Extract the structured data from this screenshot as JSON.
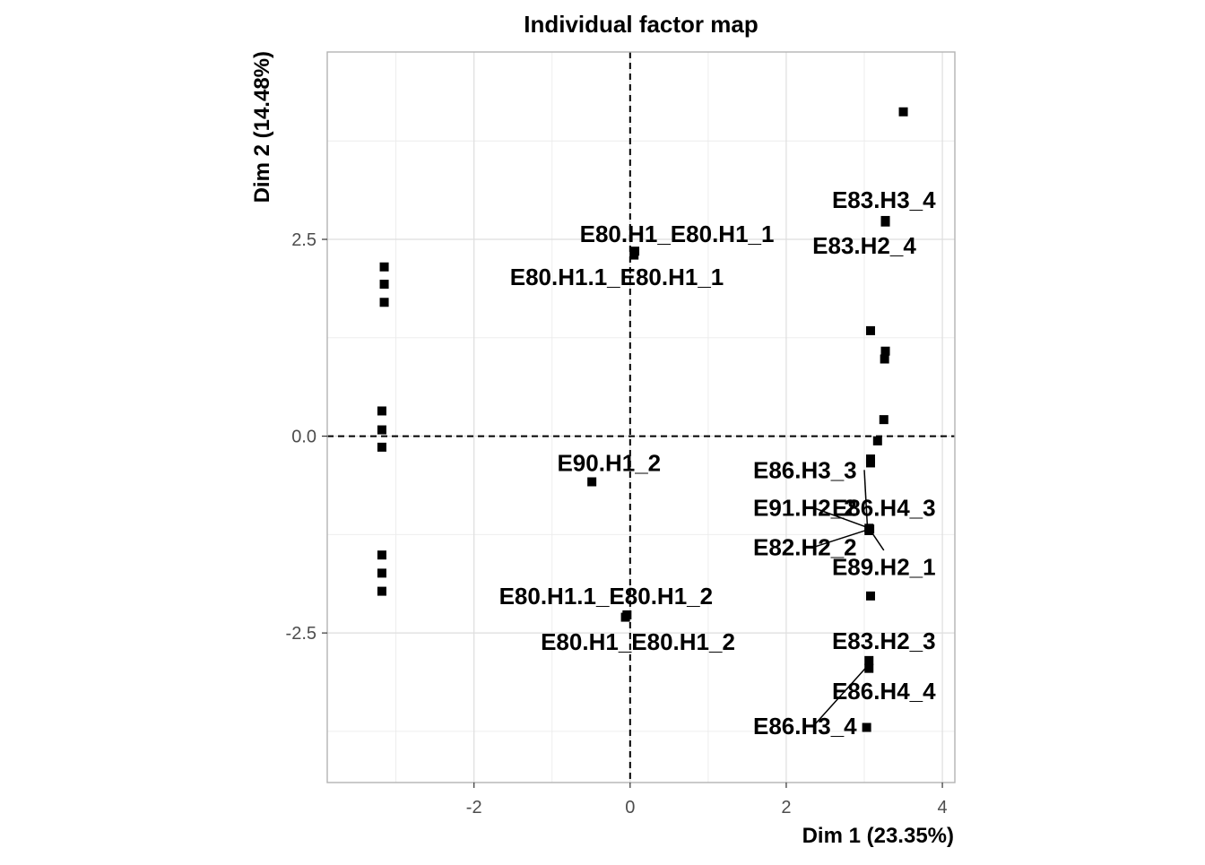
{
  "chart_data": {
    "type": "scatter",
    "title": "Individual factor map",
    "xlabel": "Dim 1 (23.35%)",
    "ylabel": "Dim 2 (14.48%)",
    "xlim": [
      -3.88,
      4.16
    ],
    "ylim": [
      -4.4,
      4.88
    ],
    "x_ticks": [
      -2,
      0,
      2,
      4
    ],
    "x_tick_labels": [
      "-2",
      "0",
      "2",
      "4"
    ],
    "y_ticks": [
      -2.5,
      0.0,
      2.5
    ],
    "y_tick_labels": [
      "-2.5",
      "0.0",
      "2.5"
    ],
    "grid": true,
    "reference_lines": {
      "x": 0,
      "y": 0,
      "style": "dashed"
    },
    "points": [
      {
        "x": -3.15,
        "y": 2.15
      },
      {
        "x": -3.15,
        "y": 1.93
      },
      {
        "x": -3.15,
        "y": 1.7
      },
      {
        "x": -3.18,
        "y": 0.32
      },
      {
        "x": -3.18,
        "y": 0.08
      },
      {
        "x": -3.18,
        "y": -0.14
      },
      {
        "x": -3.18,
        "y": -1.51
      },
      {
        "x": -3.18,
        "y": -1.74
      },
      {
        "x": -3.18,
        "y": -1.97
      },
      {
        "x": 0.06,
        "y": 2.35
      },
      {
        "x": 0.05,
        "y": 2.3
      },
      {
        "x": -0.49,
        "y": -0.58
      },
      {
        "x": -0.06,
        "y": -2.3
      },
      {
        "x": -0.04,
        "y": -2.27
      },
      {
        "x": 3.5,
        "y": 4.12
      },
      {
        "x": 3.27,
        "y": 2.74
      },
      {
        "x": 3.27,
        "y": 2.72
      },
      {
        "x": 3.08,
        "y": 1.34
      },
      {
        "x": 3.27,
        "y": 1.08
      },
      {
        "x": 3.26,
        "y": 0.98
      },
      {
        "x": 3.25,
        "y": 0.21
      },
      {
        "x": 3.17,
        "y": -0.06
      },
      {
        "x": 3.08,
        "y": -0.29
      },
      {
        "x": 3.08,
        "y": -0.34
      },
      {
        "x": 3.06,
        "y": -1.17
      },
      {
        "x": 3.06,
        "y": -1.2
      },
      {
        "x": 3.07,
        "y": -1.18
      },
      {
        "x": 3.08,
        "y": -2.03
      },
      {
        "x": 3.06,
        "y": -2.85
      },
      {
        "x": 3.06,
        "y": -2.95
      },
      {
        "x": 3.03,
        "y": -3.7
      }
    ],
    "labels": [
      {
        "text": "E80.H1_E80.H1_1",
        "x": 0.6,
        "y": 2.57
      },
      {
        "text": "E80.H1.1_E80.H1_1",
        "x": -0.17,
        "y": 2.02
      },
      {
        "text": "E83.H3_4",
        "x": 3.25,
        "y": 3.0
      },
      {
        "text": "E83.H2_4",
        "x": 3.0,
        "y": 2.42
      },
      {
        "text": "E90.H1_2",
        "x": -0.27,
        "y": -0.34
      },
      {
        "text": "E86.H3_3",
        "x": 2.24,
        "y": -0.43
      },
      {
        "text": "E91.H2_2",
        "x": 2.24,
        "y": -0.91
      },
      {
        "text": "E86.H4_3",
        "x": 3.25,
        "y": -0.91
      },
      {
        "text": "E82.H2_2",
        "x": 2.24,
        "y": -1.41
      },
      {
        "text": "E89.H2_1",
        "x": 3.25,
        "y": -1.66
      },
      {
        "text": "E80.H1.1_E80.H1_2",
        "x": -0.31,
        "y": -2.03
      },
      {
        "text": "E80.H1_E80.H1_2",
        "x": 0.1,
        "y": -2.61
      },
      {
        "text": "E83.H2_3",
        "x": 3.25,
        "y": -2.6
      },
      {
        "text": "E86.H4_4",
        "x": 3.25,
        "y": -3.24
      },
      {
        "text": "E86.H3_4",
        "x": 2.24,
        "y": -3.68
      }
    ],
    "leader_lines": [
      {
        "from": [
          3.0,
          -0.43
        ],
        "to": [
          3.04,
          -1.16
        ]
      },
      {
        "from": [
          2.35,
          -0.91
        ],
        "to": [
          3.04,
          -1.16
        ]
      },
      {
        "from": [
          2.35,
          -1.41
        ],
        "to": [
          3.04,
          -1.19
        ]
      },
      {
        "from": [
          3.25,
          -1.45
        ],
        "to": [
          3.08,
          -1.2
        ]
      },
      {
        "from": [
          2.35,
          -3.68
        ],
        "to": [
          3.04,
          -2.92
        ]
      }
    ]
  }
}
